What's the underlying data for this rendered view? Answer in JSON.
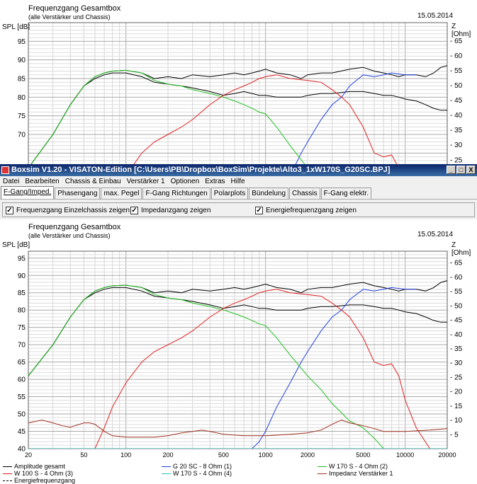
{
  "window": {
    "title": "Boxsim V1.20 - VISATON-Edition [C:\\Users\\PB\\Dropbox\\BoxSim\\Projekte\\Alto3_1xW170S_G20SC.BPJ]",
    "min": "_",
    "max": "□",
    "close": "X"
  },
  "menu": [
    "Datei",
    "Bearbeiten",
    "Chassis & Einbau",
    "Verstärker 1",
    "Optionen",
    "Extras",
    "Hilfe"
  ],
  "tabs": [
    "F-Gang/Imped.",
    "Phasengang",
    "max. Pegel",
    "F-Gang Richtungen",
    "Polarplots",
    "Bündelung",
    "Chassis",
    "F-Gang elektr."
  ],
  "options": [
    {
      "label": "Frequenzgang Einzelchassis zeigen",
      "checked": true
    },
    {
      "label": "Impedanzgang zeigen",
      "checked": true
    },
    {
      "label": "Energiefrequenzgang zeigen",
      "checked": true
    }
  ],
  "colors": {
    "black": "#000000",
    "blue": "#2040e0",
    "green": "#20c020",
    "red": "#e02020",
    "cyan": "#20c0c0",
    "brown": "#a03020",
    "grid": "#c8c8c8"
  },
  "top_chart": {
    "title": "Frequenzgang Gesamtbox",
    "subtitle": "(alle Verstärker und Chassis)",
    "date": "15.05.2014",
    "ylabel": "SPL [dB]",
    "y2label": "Z [Ohm]",
    "yticks": [
      "95",
      "90",
      "85",
      "80",
      "75",
      "70"
    ],
    "y2ticks": [
      "65",
      "60",
      "55",
      "50",
      "45",
      "40",
      "35",
      "30",
      "25"
    ]
  },
  "bottom_chart": {
    "title": "Frequenzgang Gesamtbox",
    "subtitle": "(alle Verstärker und Chassis)",
    "date": "15.05.2014",
    "ylabel": "SPL [dB]",
    "y2label": "Z [Ohm]",
    "yticks": [
      "95",
      "90",
      "85",
      "80",
      "75",
      "70",
      "65",
      "60",
      "55",
      "50",
      "45",
      "40"
    ],
    "y2ticks": [
      "65",
      "60",
      "55",
      "50",
      "45",
      "40",
      "35",
      "30",
      "25",
      "20",
      "15",
      "10",
      "5"
    ],
    "xticks": [
      "20",
      "50",
      "100",
      "200",
      "500",
      "1000",
      "2000",
      "5000",
      "10000",
      "20000"
    ]
  },
  "legend": [
    {
      "label": "Amplitude gesamt",
      "color": "#000000"
    },
    {
      "label": "G 20 SC - 8 Ohm (1)",
      "color": "#2040e0"
    },
    {
      "label": "W 170 S - 4 Ohm (2)",
      "color": "#20c020"
    },
    {
      "label": "W 100 S - 4 Ohm (3)",
      "color": "#e02020"
    },
    {
      "label": "W 170 S - 4 Ohm (4)",
      "color": "#20c0c0"
    },
    {
      "label": "Impedanz Verstärker 1",
      "color": "#a03020"
    },
    {
      "label": "Energiefrequenzgang",
      "color": "#000000"
    }
  ],
  "chart_data": [
    {
      "type": "line",
      "title": "Frequenzgang Gesamtbox",
      "xlabel": "",
      "ylabel": "SPL [dB]",
      "ylim": [
        40,
        98
      ],
      "y2lim": [
        0,
        69
      ],
      "xlim": [
        20,
        20000
      ],
      "xscale": "log",
      "grid": true,
      "series": [
        {
          "name": "Amplitude gesamt",
          "axis": "left",
          "color": "#000000",
          "x": [
            20,
            30,
            40,
            50,
            60,
            70,
            80,
            100,
            130,
            160,
            200,
            250,
            300,
            400,
            500,
            600,
            700,
            800,
            900,
            1000,
            1200,
            1500,
            1800,
            2000,
            2500,
            3000,
            4000,
            5000,
            6000,
            7000,
            8000,
            9000,
            10000,
            12000,
            14000,
            16000,
            18000,
            20000
          ],
          "y": [
            61,
            70,
            78,
            83,
            85.5,
            86.5,
            87,
            87.2,
            86.5,
            85,
            85.5,
            85,
            86,
            85.5,
            86,
            86.5,
            86,
            86.5,
            87,
            87.5,
            86.5,
            86,
            85,
            86,
            86.5,
            86.5,
            87.5,
            88,
            87,
            86.5,
            86,
            85.5,
            86,
            86,
            85.5,
            86.5,
            88,
            88.5
          ]
        },
        {
          "name": "Energiefrequenzgang",
          "axis": "left",
          "color": "#000000",
          "x": [
            20,
            30,
            40,
            50,
            60,
            70,
            80,
            100,
            130,
            160,
            200,
            250,
            300,
            400,
            500,
            600,
            700,
            800,
            900,
            1000,
            1200,
            1500,
            1800,
            2000,
            2500,
            3000,
            4000,
            5000,
            6000,
            7000,
            8000,
            9000,
            10000,
            12000,
            14000,
            16000,
            18000,
            20000
          ],
          "y": [
            61,
            70,
            78,
            83,
            85,
            86,
            86.5,
            86.5,
            85.5,
            84,
            83.5,
            83,
            82.5,
            81.5,
            80.5,
            81,
            81.5,
            81,
            80.5,
            80.5,
            80,
            80,
            80,
            80.5,
            81,
            81,
            81.5,
            81.5,
            81,
            80.5,
            80.5,
            80,
            79.5,
            79,
            78,
            77,
            76.5,
            76.5
          ]
        },
        {
          "name": "G 20 SC - 8 Ohm (1)",
          "axis": "left",
          "color": "#2040e0",
          "x": [
            800,
            900,
            1000,
            1200,
            1500,
            1800,
            2000,
            2500,
            3000,
            3500,
            4000,
            5000,
            6000,
            7000,
            8000,
            10000,
            12000
          ],
          "y": [
            40,
            42,
            45,
            52,
            59,
            65,
            68,
            74,
            78,
            80,
            83,
            86,
            85.5,
            86,
            86.5,
            86,
            86
          ]
        },
        {
          "name": "W 170 S - 4 Ohm (2)",
          "axis": "left",
          "color": "#20c020",
          "x": [
            20,
            30,
            40,
            50,
            60,
            70,
            80,
            100,
            130,
            160,
            200,
            250,
            300,
            400,
            500,
            600,
            700,
            800,
            900,
            1000,
            1200,
            1500,
            2000,
            2500,
            3000,
            4000,
            5000,
            6000,
            7000
          ],
          "y": [
            61,
            70,
            78,
            83,
            85.5,
            86.5,
            87,
            87.2,
            86.5,
            84.5,
            83.5,
            83,
            82,
            81,
            80,
            79,
            78,
            77,
            76,
            75.5,
            72,
            67,
            61,
            57,
            53,
            48,
            46,
            43,
            40
          ]
        },
        {
          "name": "W 100 S - 4 Ohm (3)",
          "axis": "left",
          "color": "#e02020",
          "x": [
            60,
            70,
            80,
            100,
            130,
            160,
            200,
            250,
            300,
            400,
            500,
            600,
            700,
            800,
            900,
            1000,
            1200,
            1500,
            2000,
            2500,
            3000,
            3500,
            4000,
            5000,
            6000,
            7000,
            8000,
            9000,
            10000,
            12000,
            15000
          ],
          "y": [
            40,
            46,
            52,
            59,
            65,
            68,
            70,
            72,
            74,
            78,
            80.5,
            82,
            83,
            84,
            85,
            85.5,
            86,
            85,
            84.5,
            84,
            82,
            80,
            78,
            72,
            65,
            64,
            64.5,
            61,
            54,
            46,
            40
          ]
        },
        {
          "name": "Impedanz Verstärker 1",
          "axis": "right",
          "color": "#a03020",
          "x": [
            20,
            25,
            30,
            35,
            40,
            50,
            55,
            60,
            70,
            80,
            100,
            130,
            160,
            200,
            250,
            300,
            350,
            400,
            500,
            700,
            1000,
            1500,
            2000,
            2500,
            3000,
            3500,
            4000,
            5000,
            6000,
            7000,
            8000,
            10000,
            15000,
            20000
          ],
          "y": [
            9,
            10,
            9,
            8,
            7.5,
            9,
            9,
            8.5,
            6,
            4.5,
            4,
            4,
            4,
            4.5,
            5.5,
            6,
            6.5,
            6,
            5,
            4.5,
            4.5,
            5,
            5.5,
            6.5,
            8.5,
            10,
            9,
            8,
            7,
            6,
            6,
            6,
            6.5,
            7
          ]
        },
        {
          "name": "W 170 S - 4 Ohm (4)",
          "axis": "left",
          "color": "#20c0c0",
          "x": [
            20,
            20000
          ],
          "y": [
            40,
            40
          ]
        }
      ]
    }
  ]
}
